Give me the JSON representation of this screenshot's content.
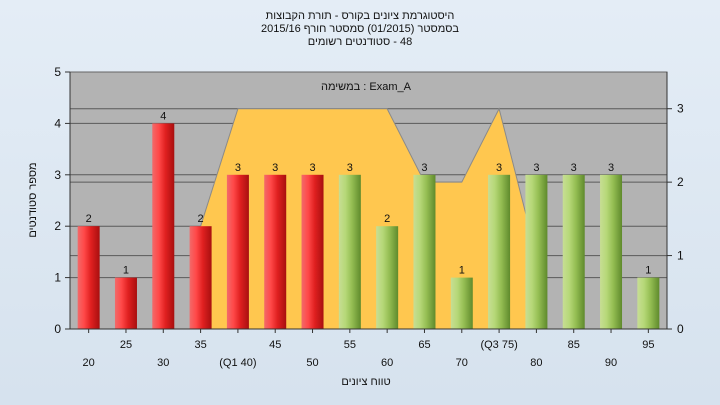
{
  "chart_data": {
    "type": "bar",
    "title_lines": [
      "היסטוגרמת ציונים בקורס - תורת הקבוצות",
      "בסמסטר  (01/2015)  סמסטר חורף 2015/16",
      "48 - סטודנטים רשומים"
    ],
    "legend_label": "במשימה : Exam_A",
    "xlabel": "טווח ציונים",
    "ylabel": "מספר סטודנטים",
    "ylim": [
      0,
      5
    ],
    "y_ticks": [
      "0",
      "1",
      "2",
      "3",
      "4",
      "5"
    ],
    "y2lim": [
      0,
      3.5
    ],
    "y2_ticks": [
      "0",
      "1",
      "2",
      "3"
    ],
    "categories": [
      "20",
      "25",
      "30",
      "35",
      "(Q1 40)",
      "45",
      "50",
      "55",
      "60",
      "65",
      "70",
      "(Q3 75)",
      "80",
      "85",
      "90",
      "95"
    ],
    "values": [
      2,
      1,
      4,
      2,
      3,
      3,
      3,
      3,
      2,
      3,
      1,
      3,
      3,
      3,
      3,
      1
    ],
    "value_labels": [
      "2",
      "1",
      "4",
      "2",
      "3",
      "3",
      "3",
      "3",
      "2",
      "3",
      "1",
      "3",
      "3",
      "3",
      "3",
      "1"
    ],
    "bar_colors": [
      "red",
      "red",
      "red",
      "red",
      "red",
      "red",
      "red",
      "green",
      "green",
      "green",
      "green",
      "green",
      "green",
      "green",
      "green",
      "green"
    ],
    "area_series": [
      {
        "x": "35",
        "y": 1.4
      },
      {
        "x": "(Q1 40)",
        "y": 3
      },
      {
        "x": "60",
        "y": 3
      },
      {
        "x": "65",
        "y": 2
      },
      {
        "x": "70",
        "y": 2
      },
      {
        "x": "(Q3 75)",
        "y": 3
      },
      {
        "x": "80",
        "y": 1
      }
    ],
    "colors": {
      "red": "#e3282a",
      "green": "#9ac45a",
      "area": "#ffc74f",
      "plot_bg": "#b3b3b3"
    },
    "grid": true,
    "legend_position": "top-center"
  }
}
